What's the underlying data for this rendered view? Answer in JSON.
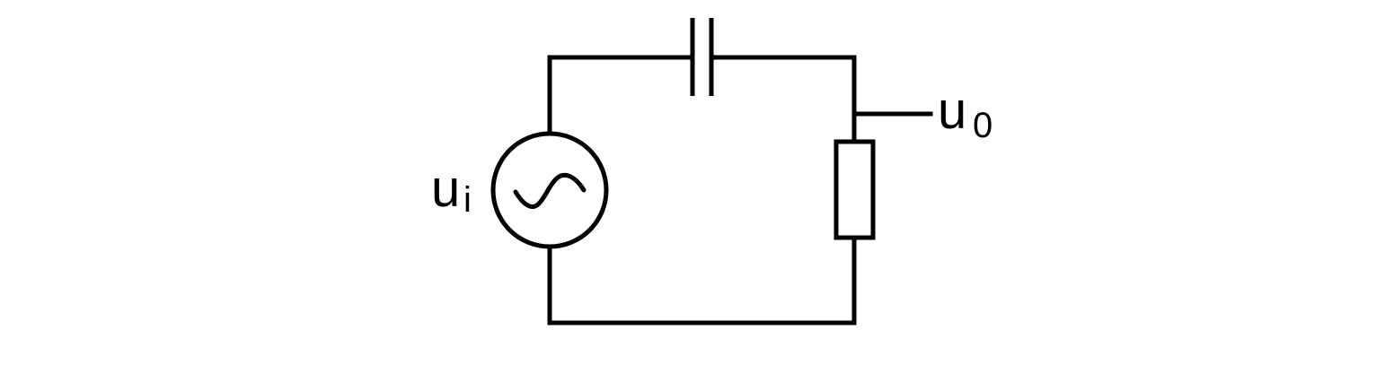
{
  "diagram": {
    "input_label": {
      "main": "u",
      "sub": "i"
    },
    "output_label": {
      "main": "u",
      "sub": "0"
    },
    "components": {
      "source": "ac-voltage-source",
      "capacitor": "capacitor",
      "resistor": "resistor"
    },
    "colors": {
      "stroke": "#000000",
      "background": "#ffffff"
    }
  }
}
